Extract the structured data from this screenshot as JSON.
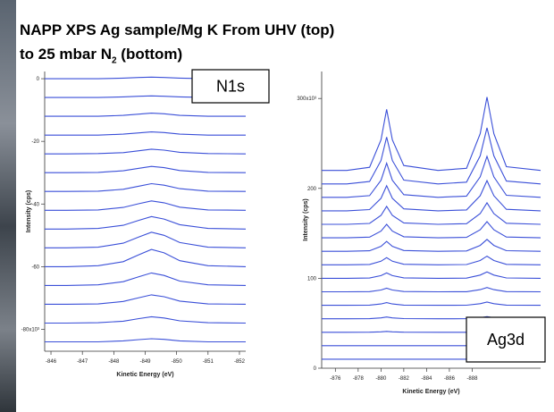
{
  "title": {
    "line1": "NAPP XPS Ag sample/Mg K From UHV (top)",
    "line2": "to 25 mbar N",
    "subscript": "2",
    "line2_end": "(bottom)"
  },
  "chart_data": [
    {
      "type": "line",
      "label": "N1s",
      "xlabel": "Kinetic Energy (eV)",
      "ylabel": "Intensity (cps)",
      "xlim": [
        -845.8,
        -852.2
      ],
      "ylim": [
        -87,
        2.3
      ],
      "xticks": [
        -846,
        -847,
        -848,
        -849,
        -850,
        -851,
        -852
      ],
      "yticks": [
        0,
        -20,
        -40,
        -60,
        {
          "value": -80,
          "label": "-80x10³"
        }
      ],
      "x": [
        -845.8,
        -846.5,
        -847.5,
        -848.3,
        -848.8,
        -849.2,
        -849.6,
        -850.1,
        -851,
        -852.2
      ],
      "series": [
        {
          "color": "#3a4fd8",
          "values": [
            0,
            0,
            0,
            0.2,
            0.4,
            0.5,
            0.4,
            0.2,
            0,
            0
          ]
        },
        {
          "color": "#3a4fd8",
          "values": [
            -6,
            -6,
            -6,
            -5.8,
            -5.6,
            -5.5,
            -5.6,
            -5.8,
            -6,
            -6
          ]
        },
        {
          "color": "#3a4fd8",
          "values": [
            -12,
            -12,
            -12,
            -11.7,
            -11.3,
            -11,
            -11.2,
            -11.7,
            -12,
            -12
          ]
        },
        {
          "color": "#3a4fd8",
          "values": [
            -18,
            -18,
            -18,
            -17.7,
            -17.3,
            -17,
            -17.2,
            -17.7,
            -18,
            -18
          ]
        },
        {
          "color": "#3a4fd8",
          "values": [
            -24,
            -24,
            -23.9,
            -23.6,
            -23,
            -22.5,
            -22.8,
            -23.5,
            -23.9,
            -24
          ]
        },
        {
          "color": "#3a4fd8",
          "values": [
            -30,
            -30,
            -29.9,
            -29.4,
            -28.6,
            -28,
            -28.4,
            -29.3,
            -29.9,
            -30
          ]
        },
        {
          "color": "#3a4fd8",
          "values": [
            -36,
            -36,
            -35.9,
            -35.3,
            -34.3,
            -33.5,
            -34,
            -35.1,
            -35.9,
            -36
          ]
        },
        {
          "color": "#3a4fd8",
          "values": [
            -42,
            -42,
            -41.9,
            -41.1,
            -39.9,
            -39,
            -39.6,
            -41,
            -41.9,
            -42
          ]
        },
        {
          "color": "#3a4fd8",
          "values": [
            -48,
            -48,
            -47.8,
            -46.8,
            -45.2,
            -44,
            -44.8,
            -46.6,
            -47.8,
            -48
          ]
        },
        {
          "color": "#3a4fd8",
          "values": [
            -54,
            -54,
            -53.8,
            -52.5,
            -50.5,
            -49,
            -50,
            -52.3,
            -53.8,
            -54
          ]
        },
        {
          "color": "#3a4fd8",
          "values": [
            -60,
            -60,
            -59.7,
            -58.4,
            -56.2,
            -54.5,
            -55.6,
            -58.1,
            -59.7,
            -60
          ]
        },
        {
          "color": "#3a4fd8",
          "values": [
            -66,
            -66,
            -65.8,
            -64.8,
            -63.2,
            -62,
            -62.8,
            -64.6,
            -65.8,
            -66
          ]
        },
        {
          "color": "#3a4fd8",
          "values": [
            -72,
            -72,
            -71.9,
            -71.1,
            -69.9,
            -69,
            -69.6,
            -71,
            -71.9,
            -72
          ]
        },
        {
          "color": "#3a4fd8",
          "values": [
            -78,
            -78,
            -77.9,
            -77.4,
            -76.6,
            -76,
            -76.4,
            -77.3,
            -77.9,
            -78
          ]
        },
        {
          "color": "#3a4fd8",
          "values": [
            -84,
            -84,
            -84,
            -83.7,
            -83.3,
            -83,
            -83.2,
            -83.7,
            -84,
            -84
          ]
        }
      ]
    },
    {
      "type": "line",
      "label": "Ag3d",
      "xlabel": "Kinetic Energy (eV)",
      "ylabel": "Intensity (cps)",
      "xlim": [
        -874.8,
        -894
      ],
      "ylim": [
        0,
        330
      ],
      "xticks": [
        -876,
        -878,
        -880,
        -882,
        -884,
        -886,
        -888
      ],
      "yticks": [
        0,
        100,
        200,
        {
          "value": 300,
          "label": "300x10³"
        }
      ],
      "x": [
        -874.8,
        -877,
        -879,
        -880,
        -880.5,
        -881,
        -882,
        -885,
        -887.5,
        -888.7,
        -889.3,
        -889.9,
        -891,
        -894
      ],
      "series": [
        {
          "color": "#3a4fd8",
          "values": [
            10,
            10,
            10,
            10,
            10,
            10,
            10,
            10,
            10,
            10,
            10,
            10,
            10,
            10
          ]
        },
        {
          "color": "#3a4fd8",
          "values": [
            25,
            25,
            25,
            25,
            25,
            25,
            25,
            25,
            25,
            25,
            25,
            25,
            25,
            25
          ]
        },
        {
          "color": "#3a4fd8",
          "values": [
            40,
            40,
            40.1,
            40.5,
            41,
            40.5,
            40.1,
            40,
            40,
            40.6,
            41.2,
            40.6,
            40.1,
            40
          ]
        },
        {
          "color": "#3a4fd8",
          "values": [
            55,
            55,
            55.1,
            56,
            57,
            56,
            55.2,
            55,
            55.1,
            56.2,
            57.4,
            56.2,
            55.1,
            55
          ]
        },
        {
          "color": "#3a4fd8",
          "values": [
            70,
            70,
            70.2,
            71.5,
            73,
            71.5,
            70.2,
            70,
            70.1,
            71.8,
            73.6,
            71.8,
            70.2,
            70
          ]
        },
        {
          "color": "#3a4fd8",
          "values": [
            85,
            85,
            85.2,
            87,
            89,
            87,
            85.3,
            85,
            85.1,
            87.4,
            89.8,
            87.4,
            85.2,
            85
          ]
        },
        {
          "color": "#3a4fd8",
          "values": [
            100,
            100,
            100.3,
            103,
            106,
            103,
            100.5,
            100,
            100.2,
            103.6,
            107.2,
            103.6,
            100.4,
            100
          ]
        },
        {
          "color": "#3a4fd8",
          "values": [
            115,
            115,
            115.4,
            119,
            123,
            119,
            115.6,
            115,
            115.3,
            119.8,
            124.6,
            119.8,
            115.5,
            115
          ]
        },
        {
          "color": "#3a4fd8",
          "values": [
            130,
            130,
            130.6,
            135.5,
            141,
            135.5,
            130.9,
            130,
            130.4,
            136.6,
            143.2,
            136.6,
            130.7,
            130
          ]
        },
        {
          "color": "#3a4fd8",
          "values": [
            145,
            145,
            145.8,
            152.5,
            160,
            152.5,
            146.2,
            145,
            145.5,
            154,
            163,
            154,
            145.9,
            145
          ]
        },
        {
          "color": "#3a4fd8",
          "values": [
            160,
            160,
            161,
            170,
            180,
            170,
            161.6,
            160,
            160.7,
            172,
            184,
            172,
            161.2,
            160
          ]
        },
        {
          "color": "#3a4fd8",
          "values": [
            175,
            175,
            176.4,
            189,
            203,
            189,
            177.2,
            175,
            176,
            191.8,
            208.6,
            191.8,
            176.7,
            175
          ]
        },
        {
          "color": "#3a4fd8",
          "values": [
            190,
            190,
            191.9,
            209,
            228,
            209,
            193,
            190,
            191.4,
            212.8,
            235.6,
            212.8,
            192.3,
            190
          ]
        },
        {
          "color": "#3a4fd8",
          "values": [
            205,
            205,
            207.6,
            231,
            257,
            231,
            209.2,
            205,
            206.9,
            236.2,
            267.4,
            236.2,
            208.1,
            205
          ]
        },
        {
          "color": "#3a4fd8",
          "values": [
            220,
            220,
            223.4,
            254,
            288,
            254,
            225.4,
            220,
            222.4,
            260.8,
            301.6,
            260.8,
            224.1,
            220
          ]
        }
      ]
    }
  ]
}
